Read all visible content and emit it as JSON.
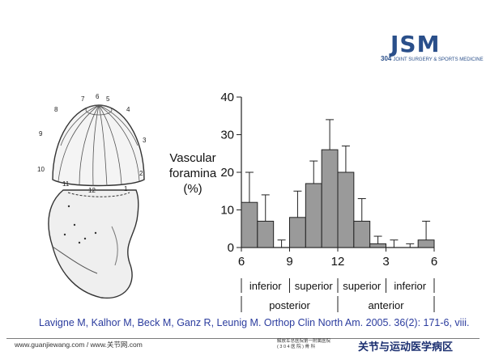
{
  "logo": {
    "main": "JSM",
    "number": "304",
    "tagline": "JOINT SURGERY & SPORTS MEDICINE"
  },
  "illustration": {
    "position_labels": [
      "1",
      "2",
      "3",
      "4",
      "5",
      "6",
      "7",
      "8",
      "9",
      "10",
      "11",
      "12"
    ]
  },
  "chart_data": {
    "type": "bar",
    "title": "",
    "xlabel": "",
    "ylabel": [
      "Vascular",
      "foramina",
      "(%)"
    ],
    "ylim": [
      0,
      40
    ],
    "yticks": [
      "0",
      "10",
      "20",
      "30",
      "40"
    ],
    "xticks": [
      "6",
      "9",
      "12",
      "3",
      "6"
    ],
    "values": [
      12,
      7,
      0,
      8,
      17,
      26,
      20,
      7,
      1,
      0,
      0,
      2
    ],
    "error_upper": [
      20,
      14,
      2,
      15,
      23,
      34,
      27,
      13,
      3,
      2,
      1,
      7
    ],
    "region_labels": [
      "inferior",
      "superior",
      "superior",
      "inferior"
    ],
    "group_labels": [
      "posterior",
      "anterior"
    ],
    "grid": false,
    "legend": "none"
  },
  "citation": "Lavigne M, Kalhor M, Beck M, Ganz R, Leunig M. Orthop Clin North Am. 2005. 36(2): 171-6, viii.",
  "footer": {
    "left": "www.guanjiewang.com / www.关节网.com",
    "hospital_line1": "解放军总医院第一附属医院",
    "hospital_line2": "( 3 0 4 医 院 ) 骨 科",
    "dept": "关节与运动医学病区"
  },
  "colors": {
    "bar_fill": "#9a9a9a",
    "citation": "#2b3c9e",
    "logo": "#2a4f8a"
  }
}
